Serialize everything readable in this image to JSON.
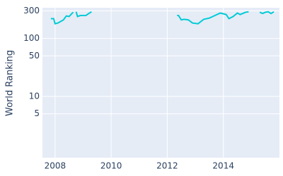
{
  "chart_data": {
    "type": "line",
    "y_label": "World Ranking",
    "x": [
      2007.85,
      2007.95,
      2008.0,
      2008.1,
      2008.3,
      2008.4,
      2008.5,
      2008.6,
      2008.65,
      2008.7,
      2008.75,
      2008.8,
      2008.9,
      2009.1,
      2009.2,
      2009.3,
      2010.0,
      2012.35,
      2012.4,
      2012.5,
      2012.6,
      2012.75,
      2012.9,
      2013.1,
      2013.3,
      2013.5,
      2013.7,
      2013.85,
      2013.9,
      2014.1,
      2014.2,
      2014.35,
      2014.5,
      2014.6,
      2014.8,
      2014.9,
      2015.1,
      2015.3,
      2015.4,
      2015.5,
      2015.6,
      2015.7,
      2015.8
    ],
    "series": [
      {
        "name": "World Ranking",
        "color": "#00cbd6",
        "values": [
          220,
          220,
          180,
          185,
          210,
          245,
          240,
          270,
          285,
          null,
          290,
          240,
          250,
          250,
          270,
          290,
          null,
          250,
          250,
          210,
          215,
          210,
          185,
          180,
          215,
          225,
          250,
          270,
          275,
          260,
          220,
          240,
          275,
          260,
          285,
          290,
          null,
          285,
          270,
          285,
          290,
          270,
          290
        ]
      }
    ],
    "xlim": [
      2007.55,
      2016.0
    ],
    "xticks": [
      2008,
      2010,
      2012,
      2014
    ],
    "ylim": [
      0.87,
      340
    ],
    "yticks": [
      5,
      10,
      50,
      100,
      300
    ],
    "log_y": true,
    "grid": true
  }
}
